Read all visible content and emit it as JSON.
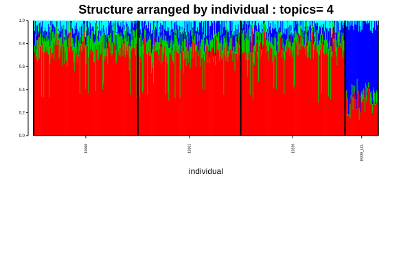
{
  "chart_data": {
    "type": "bar",
    "stacked": true,
    "title": "Structure arranged by individual : topics= 4",
    "xlabel": "individual",
    "ylabel": "",
    "ylim": [
      0,
      1
    ],
    "y_ticks": [
      "0.0",
      "0.2",
      "0.4",
      "0.6",
      "0.8",
      "1.0"
    ],
    "grid": false,
    "legend": "none",
    "series": [
      {
        "color": "#ff0000"
      },
      {
        "color": "#00cc00"
      },
      {
        "color": "#0000ff"
      },
      {
        "color": "#00ffff"
      }
    ],
    "groups": [
      {
        "name": "19098",
        "samples": 150,
        "mean": [
          0.74,
          0.13,
          0.07,
          0.06
        ]
      },
      {
        "name": "19101",
        "samples": 148,
        "mean": [
          0.71,
          0.13,
          0.1,
          0.06
        ]
      },
      {
        "name": "19239",
        "samples": 150,
        "mean": [
          0.76,
          0.11,
          0.08,
          0.05
        ]
      },
      {
        "name": "19239_LCL",
        "samples": 48,
        "mean": [
          0.3,
          0.05,
          0.63,
          0.02
        ]
      }
    ]
  }
}
